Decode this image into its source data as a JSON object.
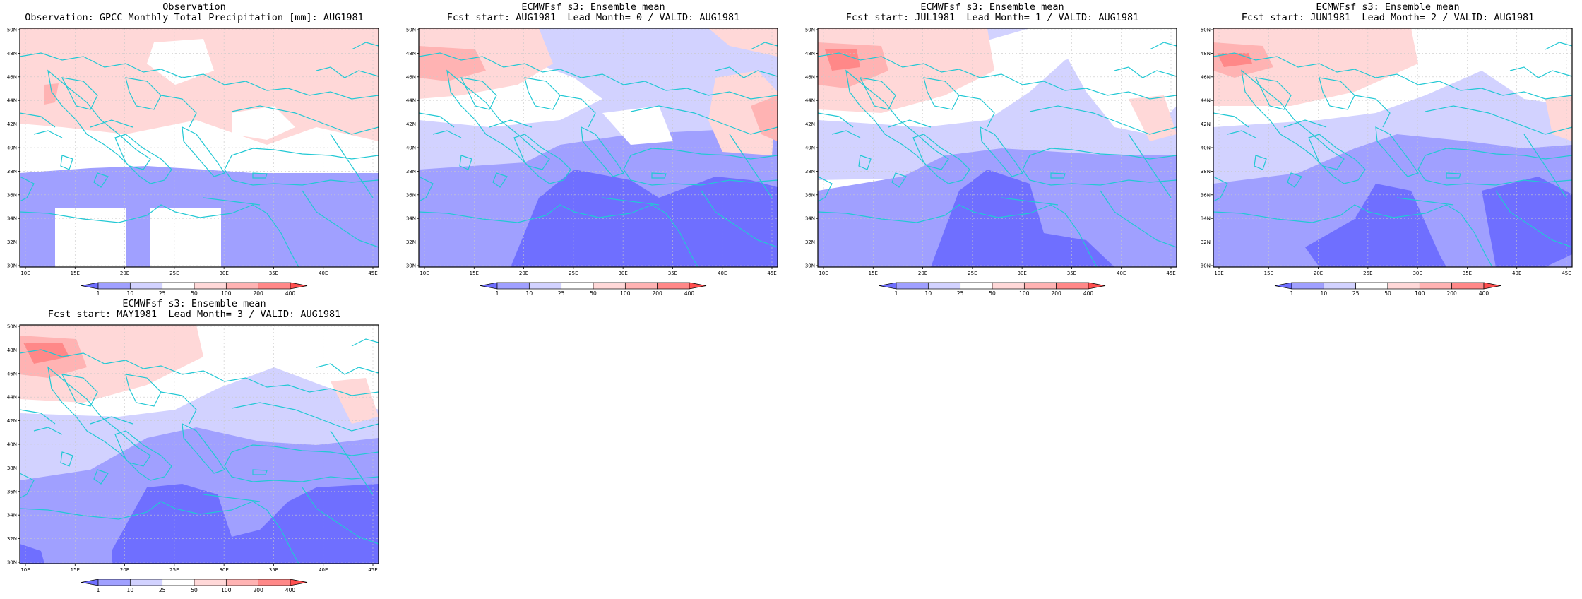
{
  "colors": {
    "levels": [
      "#6f6fff",
      "#a0a0ff",
      "#d2d2ff",
      "#ffffff",
      "#ffd8d8",
      "#ffb3b3",
      "#ff8888",
      "#ff5050"
    ],
    "coast": "#22c8d4",
    "grid": "#c8c8c8"
  },
  "colorbar": {
    "labels": [
      "1",
      "10",
      "25",
      "50",
      "100",
      "200",
      "400"
    ]
  },
  "axes": {
    "lon_labels": [
      "10E",
      "15E",
      "20E",
      "25E",
      "30E",
      "35E",
      "40E",
      "45E"
    ],
    "lat_labels": [
      "30N",
      "32N",
      "34N",
      "36N",
      "38N",
      "40N",
      "42N",
      "44N",
      "46N",
      "48N",
      "50N"
    ]
  },
  "panels": [
    {
      "title_line1": "Observation",
      "title_line2": "Observation: GPCC Monthly Total Precipitation [mm]: AUG1981"
    },
    {
      "title_line1": "ECMWFsf s3: Ensemble mean",
      "title_line2": "Fcst start: AUG1981  Lead Month= 0 / VALID: AUG1981"
    },
    {
      "title_line1": "ECMWFsf s3: Ensemble mean",
      "title_line2": "Fcst start: JUL1981  Lead Month= 1 / VALID: AUG1981"
    },
    {
      "title_line1": "ECMWFsf s3: Ensemble mean",
      "title_line2": "Fcst start: JUN1981  Lead Month= 2 / VALID: AUG1981"
    },
    {
      "title_line1": "ECMWFsf s3: Ensemble mean",
      "title_line2": "Fcst start: MAY1981  Lead Month= 3 / VALID: AUG1981"
    }
  ]
}
